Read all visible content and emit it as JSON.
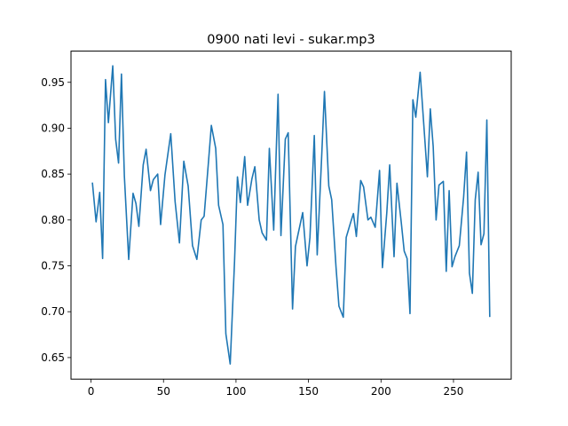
{
  "chart_data": {
    "type": "line",
    "title": "0900 nati levi - sukar.mp3",
    "xlabel": "",
    "ylabel": "",
    "xlim": [
      -13.8,
      289.8
    ],
    "ylim": [
      0.6265,
      0.984
    ],
    "x_ticks": [
      0,
      50,
      100,
      150,
      200,
      250
    ],
    "y_ticks": [
      0.65,
      0.7,
      0.75,
      0.8,
      0.85,
      0.9,
      0.95
    ],
    "y_tick_labels": [
      "0.65",
      "0.70",
      "0.75",
      "0.80",
      "0.85",
      "0.90",
      "0.95"
    ],
    "grid": false,
    "line_color": "#1f77b4",
    "series": [
      {
        "name": "sukar.mp3",
        "x": [
          1,
          3.5,
          6,
          8,
          10,
          12,
          15,
          17,
          19,
          21,
          23,
          26,
          29,
          31,
          33,
          36,
          38,
          41,
          43,
          46,
          48,
          51,
          55,
          58,
          61,
          64,
          67,
          70,
          73,
          76,
          78,
          81,
          83,
          86,
          88,
          91,
          93,
          96,
          99,
          101,
          103,
          106,
          108,
          111,
          113,
          116,
          118,
          121,
          123,
          126,
          129,
          131,
          134,
          136,
          139,
          141,
          143,
          146,
          149,
          151,
          154,
          156,
          159,
          161,
          164,
          166,
          169,
          171,
          174,
          176,
          179,
          181,
          183,
          186,
          188,
          191,
          193,
          196,
          199,
          201,
          204,
          206,
          209,
          211,
          214,
          216,
          218,
          220,
          222,
          224,
          227,
          230,
          232,
          234,
          236,
          238,
          240,
          243,
          245,
          247,
          249,
          251,
          254,
          257,
          259,
          261,
          263,
          265,
          267,
          269,
          271,
          273,
          275
        ],
        "values": [
          0.84,
          0.798,
          0.83,
          0.758,
          0.953,
          0.906,
          0.968,
          0.888,
          0.862,
          0.959,
          0.848,
          0.757,
          0.829,
          0.818,
          0.793,
          0.86,
          0.877,
          0.832,
          0.844,
          0.85,
          0.795,
          0.849,
          0.894,
          0.82,
          0.775,
          0.864,
          0.837,
          0.772,
          0.757,
          0.8,
          0.804,
          0.863,
          0.903,
          0.878,
          0.816,
          0.795,
          0.676,
          0.643,
          0.755,
          0.847,
          0.819,
          0.869,
          0.816,
          0.845,
          0.858,
          0.8,
          0.786,
          0.778,
          0.878,
          0.789,
          0.937,
          0.783,
          0.888,
          0.895,
          0.703,
          0.771,
          0.786,
          0.808,
          0.75,
          0.781,
          0.892,
          0.762,
          0.866,
          0.94,
          0.837,
          0.822,
          0.748,
          0.706,
          0.694,
          0.781,
          0.797,
          0.807,
          0.782,
          0.843,
          0.836,
          0.8,
          0.803,
          0.792,
          0.854,
          0.748,
          0.808,
          0.86,
          0.76,
          0.84,
          0.797,
          0.766,
          0.758,
          0.698,
          0.931,
          0.912,
          0.961,
          0.893,
          0.847,
          0.921,
          0.88,
          0.8,
          0.838,
          0.842,
          0.744,
          0.832,
          0.749,
          0.76,
          0.772,
          0.825,
          0.874,
          0.742,
          0.72,
          0.822,
          0.852,
          0.773,
          0.785,
          0.909,
          0.695
        ]
      }
    ]
  }
}
